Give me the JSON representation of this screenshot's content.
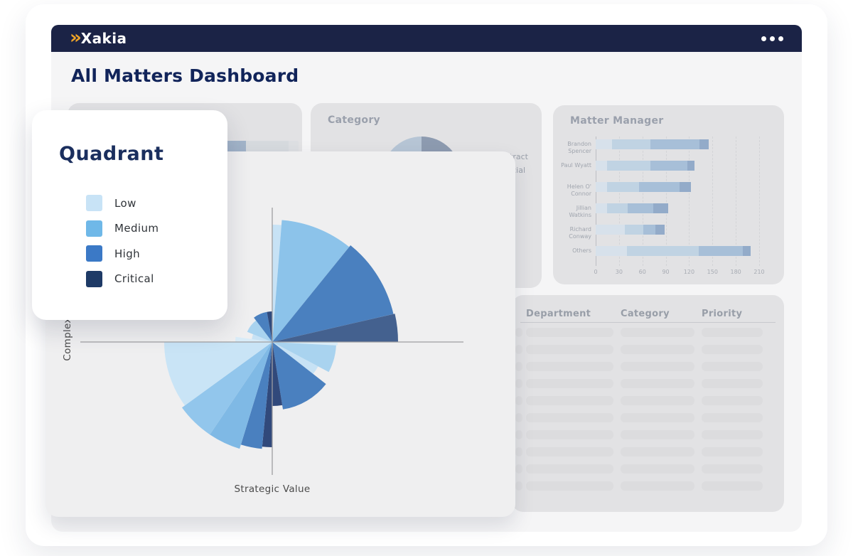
{
  "brand": {
    "logo_text": "Xakia",
    "logo_chevron": "»"
  },
  "topbar": {
    "menu_icon": "ellipsis-icon"
  },
  "page": {
    "title": "All Matters Dashboard"
  },
  "legend_card": {
    "title": "Quadrant",
    "items": [
      {
        "label": "Low",
        "color": "#c8e3f6"
      },
      {
        "label": "Medium",
        "color": "#6fb8e8"
      },
      {
        "label": "High",
        "color": "#3b79c6"
      },
      {
        "label": "Critical",
        "color": "#1e3a66"
      }
    ]
  },
  "quadrant_card": {
    "x_axis_label": "Strategic Value",
    "y_axis_label": "Complexity"
  },
  "background_cards": {
    "category": {
      "title": "Category",
      "legend_items": [
        "Contract",
        "Commercial"
      ],
      "pie_left_color": "#b6c5d5",
      "pie_right_color": "#8d9bb0"
    },
    "matter_manager": {
      "title": "Matter Manager"
    },
    "table": {
      "headers": [
        "Department",
        "Category",
        "Priority"
      ],
      "row_count": 10
    }
  },
  "chart_data": [
    {
      "type": "pie",
      "title": "Category",
      "visible_slice_colors": [
        "#b6c5d5",
        "#8d9bb0"
      ],
      "visible_legend_labels": [
        "Contract",
        "Commercial"
      ],
      "note": "only top of pie visible; remainder covered by overlay card"
    },
    {
      "type": "bar",
      "title": "Matter Manager",
      "orientation": "horizontal",
      "stacked": true,
      "categories": [
        "Brandon Spencer",
        "Paul Wyatt",
        "Helen O' Connor",
        "Jillian Watkins",
        "Richard Conway",
        "Others"
      ],
      "series": [
        {
          "name": "stack-1",
          "color": "#d7e1eb",
          "values": [
            21,
            15,
            15,
            15,
            37,
            40
          ]
        },
        {
          "name": "stack-2",
          "color": "#c0d3e3",
          "values": [
            49,
            55,
            41,
            26,
            24,
            92
          ]
        },
        {
          "name": "stack-3",
          "color": "#a7bfd8",
          "values": [
            63,
            48,
            52,
            33,
            16,
            57
          ]
        },
        {
          "name": "stack-4",
          "color": "#93abc9",
          "values": [
            12,
            9,
            14,
            19,
            12,
            10
          ]
        }
      ],
      "xlim": [
        0,
        210
      ],
      "xticks": [
        0,
        30,
        60,
        90,
        120,
        150,
        180,
        210
      ],
      "grid": true,
      "legend_position": "none"
    },
    {
      "type": "polar-quadrant",
      "title": "Quadrant",
      "xlabel": "Strategic Value",
      "ylabel": "Complexity",
      "levels": [
        "Low",
        "Medium",
        "High",
        "Critical"
      ],
      "sectors": [
        {
          "quadrant": "top-right",
          "level": "Low",
          "a0": 90,
          "a1": 85.5,
          "r": 165,
          "color": "#c7e2f5"
        },
        {
          "quadrant": "top-right",
          "level": "Medium",
          "a0": 85.5,
          "a1": 51,
          "r": 172,
          "color": "#8cc3ea"
        },
        {
          "quadrant": "top-right",
          "level": "High",
          "a0": 51,
          "a1": 13,
          "r": 175,
          "color": "#4a80bf"
        },
        {
          "quadrant": "top-right",
          "level": "Critical",
          "a0": 13,
          "a1": 0,
          "r": 177,
          "color": "#44618f"
        },
        {
          "quadrant": "top-left",
          "level": "Low",
          "a0": 180,
          "a1": 172,
          "r": 52,
          "color": "#d9ecf8"
        },
        {
          "quadrant": "top-left",
          "level": "Low",
          "a0": 172,
          "a1": 158,
          "r": 29,
          "color": "#c7e2f5"
        },
        {
          "quadrant": "top-left",
          "level": "Medium",
          "a0": 158,
          "a1": 127,
          "r": 38,
          "color": "#a9d3ef"
        },
        {
          "quadrant": "top-left",
          "level": "High",
          "a0": 127,
          "a1": 100,
          "r": 43,
          "color": "#4a80bf"
        },
        {
          "quadrant": "top-left",
          "level": "Critical",
          "a0": 100,
          "a1": 90,
          "r": 43,
          "color": "#2f4a7d"
        },
        {
          "quadrant": "bottom-left",
          "level": "Critical",
          "a0": 270,
          "a1": 264.5,
          "r": 148,
          "color": "#31497b"
        },
        {
          "quadrant": "bottom-left",
          "level": "High",
          "a0": 264.5,
          "a1": 253,
          "r": 151,
          "color": "#4a80bf"
        },
        {
          "quadrant": "bottom-left",
          "level": "Medium",
          "a0": 253,
          "a1": 236,
          "r": 157,
          "color": "#7fb9e5"
        },
        {
          "quadrant": "bottom-left",
          "level": "Medium",
          "a0": 236,
          "a1": 216,
          "r": 157,
          "color": "#92c6ec"
        },
        {
          "quadrant": "bottom-left",
          "level": "Low",
          "a0": 216,
          "a1": 180,
          "r": 152,
          "color": "#c9e4f6"
        },
        {
          "quadrant": "bottom-right",
          "level": "Low",
          "a0": 360,
          "a1": 357,
          "r": 92,
          "color": "#d9ecf8"
        },
        {
          "quadrant": "bottom-right",
          "level": "Medium",
          "a0": 357,
          "a1": 332,
          "r": 90,
          "color": "#a9d3ef"
        },
        {
          "quadrant": "bottom-right",
          "level": "Low",
          "a0": 332,
          "a1": 322,
          "r": 73,
          "color": "#c7e2f5"
        },
        {
          "quadrant": "bottom-right",
          "level": "High",
          "a0": 322,
          "a1": 279,
          "r": 96,
          "color": "#4a80bf"
        },
        {
          "quadrant": "bottom-right",
          "level": "Critical",
          "a0": 279,
          "a1": 270,
          "r": 90,
          "color": "#31497b"
        }
      ]
    }
  ]
}
